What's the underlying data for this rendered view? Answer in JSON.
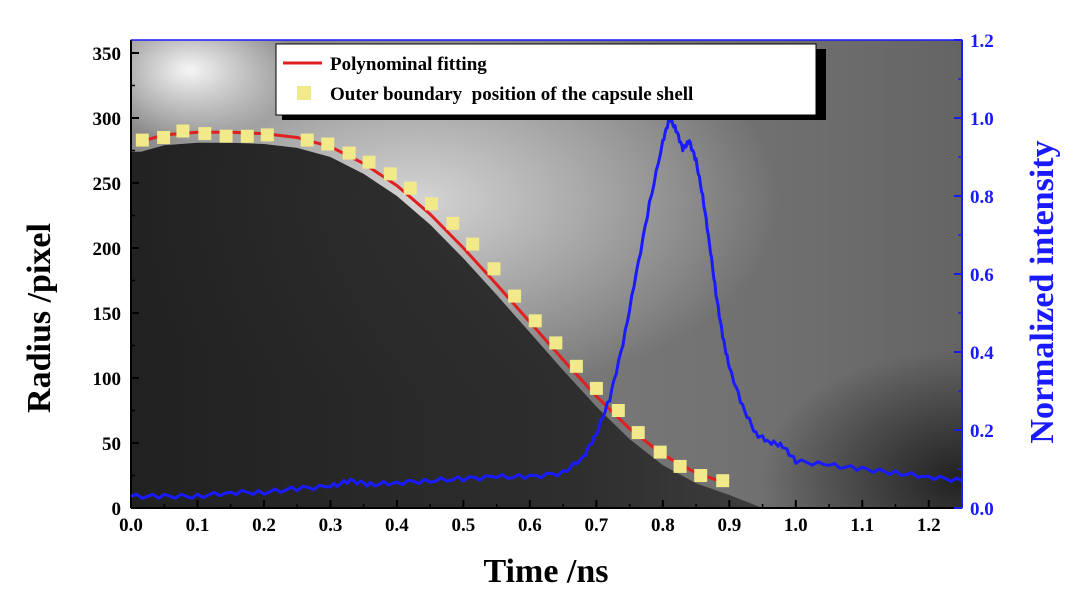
{
  "chart_data": {
    "type": "line",
    "title": "",
    "xlabel": "Time /ns",
    "ylabel": "Radius /pixel",
    "y2label": "Normalized intensity",
    "xlim": [
      0,
      1.25
    ],
    "ylim": [
      0,
      360
    ],
    "y2lim": [
      0,
      1.2
    ],
    "x_ticks": [
      "0.0",
      "0.1",
      "0.2",
      "0.3",
      "0.4",
      "0.5",
      "0.6",
      "0.7",
      "0.8",
      "0.9",
      "1.0",
      "1.1",
      "1.2"
    ],
    "y_ticks": [
      "0",
      "50",
      "100",
      "150",
      "200",
      "250",
      "300",
      "350"
    ],
    "y2_ticks": [
      "0.0",
      "0.2",
      "0.4",
      "0.6",
      "0.8",
      "1.0",
      "1.2"
    ],
    "legend_position": "top-center",
    "background": "grayscale streak image",
    "colors": {
      "fit": "#e02020",
      "markers": "#f2e98a",
      "intensity": "#1a1aff",
      "right_axis": "#1a1aff"
    },
    "series": [
      {
        "name": "Polynominal fitting",
        "axis": "left",
        "style": "line",
        "x": [
          0.015,
          0.05,
          0.1,
          0.15,
          0.2,
          0.25,
          0.3,
          0.35,
          0.4,
          0.45,
          0.5,
          0.55,
          0.6,
          0.65,
          0.7,
          0.75,
          0.8,
          0.85,
          0.9
        ],
        "y": [
          282,
          287,
          289,
          289,
          288,
          285,
          278,
          265,
          248,
          226,
          200,
          172,
          143,
          114,
          86,
          61,
          41,
          27,
          18
        ]
      },
      {
        "name": "Outer boundary  position of the capsule shell",
        "axis": "left",
        "style": "markers",
        "x": [
          0.017,
          0.049,
          0.078,
          0.111,
          0.143,
          0.175,
          0.205,
          0.265,
          0.296,
          0.328,
          0.358,
          0.39,
          0.42,
          0.452,
          0.484,
          0.514,
          0.546,
          0.577,
          0.608,
          0.639,
          0.67,
          0.7,
          0.733,
          0.763,
          0.796,
          0.826,
          0.857,
          0.89
        ],
        "y": [
          283,
          285,
          290,
          288,
          286,
          286,
          287,
          283,
          280,
          273,
          266,
          257,
          246,
          234,
          219,
          203,
          184,
          163,
          144,
          127,
          109,
          92,
          75,
          58,
          43,
          32,
          25,
          21
        ]
      },
      {
        "name": "",
        "axis": "right",
        "style": "line",
        "x": [
          0,
          0.05,
          0.1,
          0.15,
          0.2,
          0.25,
          0.3,
          0.33,
          0.36,
          0.4,
          0.45,
          0.5,
          0.55,
          0.6,
          0.65,
          0.68,
          0.7,
          0.72,
          0.74,
          0.76,
          0.78,
          0.8,
          0.81,
          0.82,
          0.83,
          0.84,
          0.85,
          0.86,
          0.87,
          0.88,
          0.89,
          0.9,
          0.92,
          0.94,
          0.96,
          0.98,
          1.0,
          1.05,
          1.1,
          1.15,
          1.2,
          1.25
        ],
        "y": [
          0.03,
          0.03,
          0.03,
          0.04,
          0.04,
          0.05,
          0.055,
          0.07,
          0.06,
          0.065,
          0.07,
          0.075,
          0.08,
          0.08,
          0.09,
          0.13,
          0.19,
          0.28,
          0.42,
          0.6,
          0.78,
          0.94,
          1.0,
          0.97,
          0.92,
          0.94,
          0.89,
          0.8,
          0.68,
          0.55,
          0.44,
          0.36,
          0.26,
          0.19,
          0.17,
          0.16,
          0.12,
          0.11,
          0.1,
          0.09,
          0.08,
          0.07
        ]
      }
    ]
  }
}
